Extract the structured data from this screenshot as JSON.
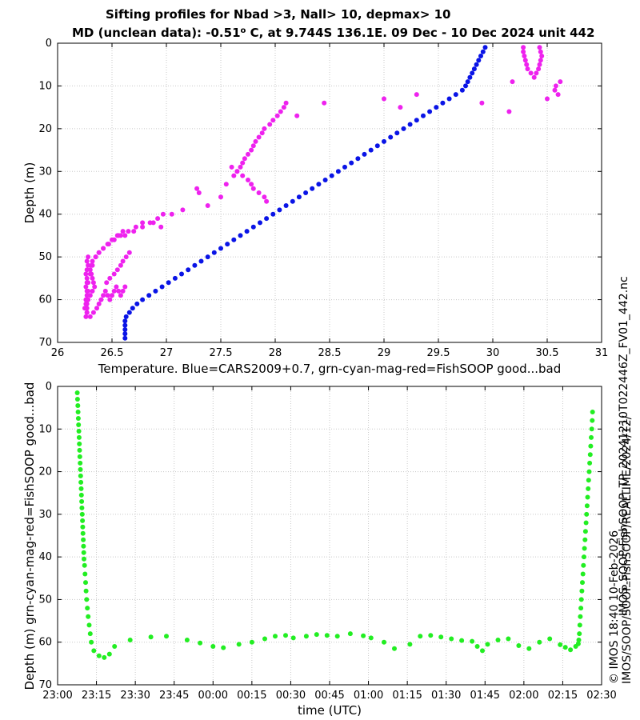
{
  "header": {
    "title_line1": "Sifting profiles for Nbad >3, Nall> 10, depmax> 10",
    "title_line2_pre": "MD (unclean data): -0.51",
    "title_line2_sup": "o",
    "title_line2_post": " C, at 9.744S 136.1E. 09 Dec - 10 Dec 2024 unit 442"
  },
  "side_text": {
    "file": "IMOS_SOOP-FishSOOP_TP_20241210T022446Z_FV01_442.nc",
    "copyright": "© IMOS 18:40 10-Feb-2026",
    "path": "IMOS/SOOP/SOOP-FishSOOP/REALTIME/2024/12/"
  },
  "colors": {
    "cars": "#0a14e6",
    "bad": "#ee22ee",
    "good": "#22ee22",
    "grid": "#c8c8c8"
  },
  "chart_data": [
    {
      "type": "scatter",
      "xlabel": "Temperature. Blue=CARS2009+0.7, grn-cyan-mag-red=FishSOOP good...bad",
      "ylabel": "Depth (m)",
      "xlim": [
        26,
        31
      ],
      "ylim": [
        70,
        0
      ],
      "xticks": [
        26,
        26.5,
        27,
        27.5,
        28,
        28.5,
        29,
        29.5,
        30,
        30.5,
        31
      ],
      "xtick_labels": [
        "26",
        "26.5",
        "27",
        "27.5",
        "28",
        "28.5",
        "29",
        "29.5",
        "30",
        "30.5",
        "31"
      ],
      "yticks": [
        0,
        10,
        20,
        30,
        40,
        50,
        60,
        70
      ],
      "ytick_labels": [
        "0",
        "10",
        "20",
        "30",
        "40",
        "50",
        "60",
        "70"
      ],
      "grid": true,
      "series": [
        {
          "color": "cars",
          "x": [
            29.93,
            29.91,
            29.89,
            29.87,
            29.85,
            29.83,
            29.81,
            29.79,
            29.77,
            29.75,
            29.72,
            29.66,
            29.6,
            29.54,
            29.48,
            29.42,
            29.36,
            29.3,
            29.24,
            29.18,
            29.12,
            29.06,
            29.0,
            28.94,
            28.88,
            28.82,
            28.76,
            28.7,
            28.64,
            28.58,
            28.52,
            28.46,
            28.4,
            28.34,
            28.28,
            28.22,
            28.16,
            28.1,
            28.04,
            27.98,
            27.92,
            27.86,
            27.8,
            27.74,
            27.68,
            27.62,
            27.56,
            27.5,
            27.44,
            27.38,
            27.32,
            27.26,
            27.2,
            27.14,
            27.08,
            27.02,
            26.96,
            26.9,
            26.84,
            26.78,
            26.73,
            26.69,
            26.66,
            26.63,
            26.62,
            26.62,
            26.62,
            26.62,
            26.62
          ],
          "y": [
            1,
            2,
            3,
            4,
            5,
            6,
            7,
            8,
            9,
            10,
            11,
            12,
            13,
            14,
            15,
            16,
            17,
            18,
            19,
            20,
            21,
            22,
            23,
            24,
            25,
            26,
            27,
            28,
            29,
            30,
            31,
            32,
            33,
            34,
            35,
            36,
            37,
            38,
            39,
            40,
            41,
            42,
            43,
            44,
            45,
            46,
            47,
            48,
            49,
            50,
            51,
            52,
            53,
            54,
            55,
            56,
            57,
            58,
            59,
            60,
            61,
            62,
            63,
            64,
            65,
            66,
            67,
            68,
            69
          ]
        },
        {
          "color": "bad",
          "x": [
            26.28,
            26.27,
            26.28,
            26.27,
            26.26,
            26.27,
            26.27,
            26.26,
            26.28,
            26.27,
            26.26,
            26.27,
            26.27,
            26.27,
            26.26,
            26.27,
            26.27,
            26.28,
            26.3,
            26.32,
            26.35,
            26.38,
            26.42,
            26.46,
            26.5,
            26.55,
            26.6,
            26.58,
            26.52,
            26.47,
            26.42,
            26.38,
            26.35,
            26.32,
            26.31,
            26.3,
            26.31,
            26.32,
            26.33,
            26.34,
            26.32,
            26.3,
            26.28,
            26.26,
            26.25,
            26.27,
            26.3,
            26.33,
            26.36,
            26.38,
            26.4,
            26.42,
            26.44,
            26.46,
            26.48,
            26.5,
            26.52,
            26.54,
            26.56,
            26.58,
            26.6,
            26.62,
            26.45,
            26.48,
            26.52,
            26.55,
            26.58,
            26.6,
            26.63,
            26.66,
            26.52,
            26.56,
            26.62,
            26.7,
            26.78,
            26.85,
            26.92,
            26.97,
            27.05,
            27.15,
            26.88,
            26.95,
            26.78,
            26.72,
            26.65,
            27.28,
            27.3,
            27.38,
            27.5,
            27.55,
            27.62,
            27.65,
            27.68,
            27.7,
            27.72,
            27.75,
            27.78,
            27.8,
            27.82,
            27.85,
            27.88,
            27.9,
            27.95,
            27.98,
            28.02,
            28.05,
            28.08,
            28.1,
            27.6,
            27.65,
            27.7,
            27.75,
            27.78,
            27.8,
            27.85,
            27.9,
            27.92,
            28.2,
            28.45,
            29.0,
            29.15,
            29.3,
            29.9,
            30.18,
            30.28,
            30.28,
            30.29,
            30.3,
            30.31,
            30.32,
            30.35,
            30.38,
            30.4,
            30.42,
            30.43,
            30.44,
            30.45,
            30.44,
            30.43,
            30.5,
            30.57,
            30.58,
            30.6,
            30.62,
            30.15
          ],
          "y": [
            50,
            51,
            52,
            53,
            54,
            55,
            56,
            57,
            58,
            59,
            60,
            61,
            62,
            63,
            64,
            60,
            58,
            56,
            54,
            52,
            50,
            49,
            48,
            47,
            46,
            45,
            44,
            45,
            46,
            47,
            48,
            49,
            50,
            51,
            52,
            53,
            54,
            55,
            56,
            57,
            58,
            59,
            60,
            61,
            62,
            63,
            64,
            63,
            62,
            61,
            60,
            59,
            58,
            59,
            60,
            59,
            58,
            57,
            58,
            59,
            58,
            57,
            56,
            55,
            54,
            53,
            52,
            51,
            50,
            49,
            46,
            45,
            45,
            44,
            43,
            42,
            41,
            40,
            40,
            39,
            42,
            43,
            42,
            43,
            44,
            34,
            35,
            38,
            36,
            33,
            31,
            30,
            29,
            28,
            27,
            26,
            25,
            24,
            23,
            22,
            21,
            20,
            19,
            18,
            17,
            16,
            15,
            14,
            29,
            30,
            31,
            32,
            33,
            34,
            35,
            36,
            37,
            17,
            14,
            13,
            15,
            12,
            14,
            9,
            1,
            2,
            3,
            4,
            5,
            6,
            7,
            8,
            7,
            6,
            5,
            4,
            3,
            2,
            1,
            13,
            11,
            10,
            12,
            9,
            16
          ]
        }
      ]
    },
    {
      "type": "scatter",
      "xlabel": "time (UTC)",
      "ylabel": "Depth (m) grn-cyan-mag-red=FishSOOP good...bad",
      "xlim": [
        0,
        210
      ],
      "ylim": [
        70,
        0
      ],
      "xticks": [
        0,
        15,
        30,
        45,
        60,
        75,
        90,
        105,
        120,
        135,
        150,
        165,
        180,
        195,
        210
      ],
      "xtick_labels": [
        "23:00",
        "23:15",
        "23:30",
        "23:45",
        "00:00",
        "00:15",
        "00:30",
        "00:45",
        "01:00",
        "01:15",
        "01:30",
        "01:45",
        "02:00",
        "02:15",
        "02:30"
      ],
      "yticks": [
        0,
        10,
        20,
        30,
        40,
        50,
        60,
        70
      ],
      "ytick_labels": [
        "0",
        "10",
        "20",
        "30",
        "40",
        "50",
        "60",
        "70"
      ],
      "grid": true,
      "series": [
        {
          "color": "good",
          "x": [
            7.6,
            7.7,
            7.8,
            7.9,
            8.0,
            8.1,
            8.2,
            8.3,
            8.4,
            8.5,
            8.6,
            8.7,
            8.8,
            8.9,
            9.0,
            9.1,
            9.2,
            9.3,
            9.4,
            9.5,
            9.6,
            9.7,
            9.8,
            9.9,
            10.0,
            10.1,
            10.2,
            10.4,
            10.6,
            10.8,
            11.0,
            11.2,
            11.5,
            11.8,
            12.2,
            12.6,
            13.0,
            14.0,
            16.0,
            18.0,
            20.0,
            22.0,
            28.0,
            36.0,
            42.0,
            50.0,
            55.0,
            60.0,
            64.0,
            70.0,
            75.0,
            80.0,
            84.0,
            88.0,
            91.0,
            96.0,
            100.0,
            104.0,
            108.0,
            113.0,
            118.0,
            121.0,
            126.0,
            130.0,
            136.0,
            140.0,
            144.0,
            148.0,
            152.0,
            156.0,
            160.0,
            162.0,
            164.0,
            166.0,
            170.0,
            174.0,
            178.0,
            182.0,
            186.0,
            190.0,
            194.0,
            196.0,
            198.0,
            200.0,
            201.0,
            201.2,
            201.4,
            201.6,
            201.8,
            202.0,
            202.2,
            202.4,
            202.6,
            202.8,
            203.0,
            203.2,
            203.4,
            203.6,
            203.8,
            204.0,
            204.2,
            204.4,
            204.6,
            204.8,
            205.0,
            205.2,
            205.4,
            205.6,
            205.8,
            206.0,
            206.2,
            206.4,
            206.5
          ],
          "y": [
            1.5,
            3,
            4.5,
            6,
            7.5,
            9,
            10.5,
            12,
            13.5,
            15,
            16.5,
            18,
            19.5,
            21,
            22.5,
            24,
            25.5,
            27,
            28.5,
            30,
            31.5,
            33,
            34.5,
            36,
            37.5,
            39,
            40.5,
            42,
            44,
            46,
            48,
            50,
            52,
            54,
            56,
            58,
            60,
            62,
            63.2,
            63.6,
            62.8,
            61,
            59.5,
            58.8,
            58.6,
            59.5,
            60.2,
            61,
            61.3,
            60.5,
            60,
            59.2,
            58.6,
            58.4,
            59,
            58.6,
            58.2,
            58.4,
            58.6,
            58,
            58.5,
            59,
            60,
            61.5,
            60.5,
            58.6,
            58.4,
            58.8,
            59.2,
            59.6,
            59.8,
            61,
            62,
            60.5,
            59.5,
            59.2,
            60.8,
            61.5,
            60,
            59.2,
            60.6,
            61.2,
            61.8,
            61,
            60.4,
            59.5,
            58,
            56,
            54,
            52,
            50,
            48,
            46,
            44,
            42,
            40,
            38,
            36,
            34,
            32,
            30,
            28,
            26,
            24,
            22,
            20,
            18,
            16,
            14,
            12,
            10,
            8,
            6
          ]
        }
      ]
    }
  ]
}
